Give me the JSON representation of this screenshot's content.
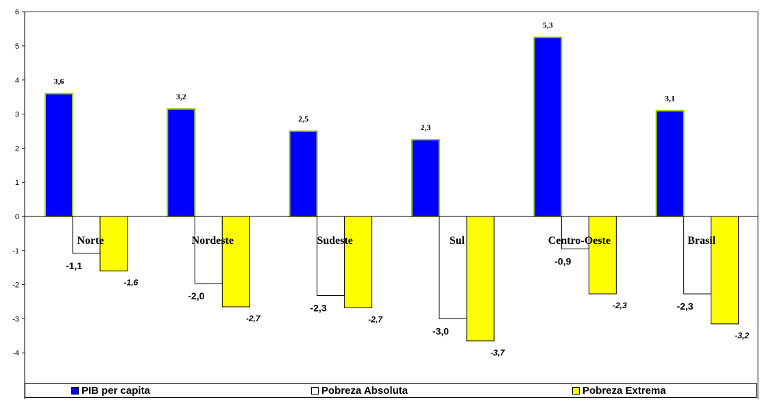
{
  "chart_data": {
    "type": "bar",
    "categories": [
      "Norte",
      "Nordeste",
      "Sudeste",
      "Sul",
      "Centro-Oeste",
      "Brasil"
    ],
    "ylim": [
      -5,
      6
    ],
    "yticks": [
      "6",
      "5",
      "4",
      "3",
      "2",
      "1",
      "0",
      "-1",
      "-2",
      "-3",
      "-4"
    ],
    "grid": false,
    "legend_position": "bottom",
    "series": [
      {
        "name": "PIB per capita",
        "color": "#0000ff",
        "values": [
          3.6,
          3.15,
          2.5,
          2.25,
          5.25,
          3.1
        ],
        "labels": [
          "3,6",
          "3,2",
          "2,5",
          "2,3",
          "5,3",
          "3,1"
        ]
      },
      {
        "name": "Pobreza Absoluta",
        "color": "#ffffff",
        "values": [
          -1.08,
          -1.97,
          -2.32,
          -3.0,
          -0.95,
          -2.27
        ],
        "labels": [
          "-1,1",
          "-2,0",
          "-2,3",
          "-3,0",
          "-0,9",
          "-2,3"
        ]
      },
      {
        "name": "Pobreza Extrema",
        "color": "#ffff00",
        "values": [
          -1.6,
          -2.65,
          -2.68,
          -3.65,
          -2.27,
          -3.15
        ],
        "labels": [
          "-1,6",
          "-2,7",
          "-2,7",
          "-3,7",
          "-2,3",
          "-3,2"
        ]
      }
    ]
  }
}
